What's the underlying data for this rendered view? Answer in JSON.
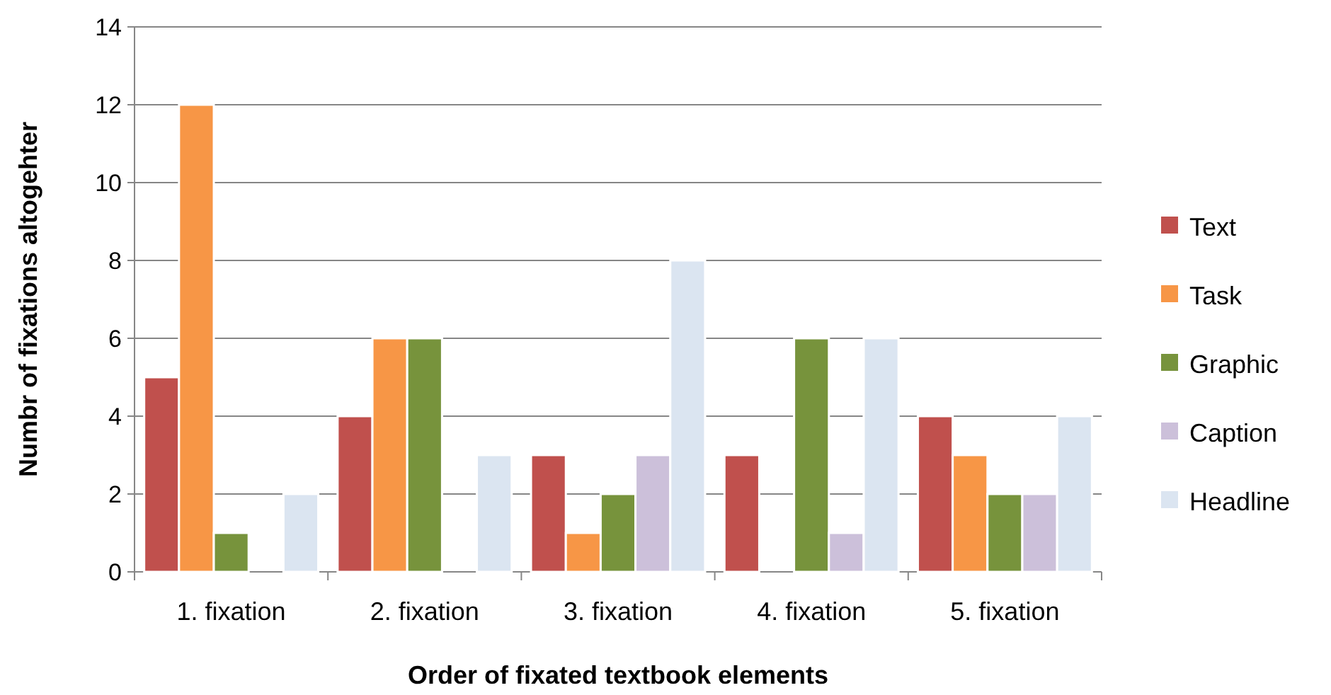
{
  "chart_data": {
    "type": "bar",
    "xlabel": "Order of fixated textbook elements",
    "ylabel": "Numbr of fixations altogehter",
    "categories": [
      "1. fixation",
      "2. fixation",
      "3. fixation",
      "4. fixation",
      "5. fixation"
    ],
    "series": [
      {
        "name": "Text",
        "color": "#c0504d",
        "values": [
          5,
          4,
          3,
          3,
          4
        ]
      },
      {
        "name": "Task",
        "color": "#f79646",
        "values": [
          12,
          6,
          1,
          0,
          3
        ]
      },
      {
        "name": "Graphic",
        "color": "#77933c",
        "values": [
          1,
          6,
          2,
          6,
          2
        ]
      },
      {
        "name": "Caption",
        "color": "#ccc0da",
        "values": [
          0,
          0,
          3,
          1,
          2
        ]
      },
      {
        "name": "Headline",
        "color": "#dbe5f1",
        "values": [
          2,
          3,
          8,
          6,
          4
        ]
      }
    ],
    "ylim": [
      0,
      14
    ],
    "yticks": [
      0,
      2,
      4,
      6,
      8,
      10,
      12,
      14
    ],
    "grid": "y",
    "legend": "right"
  }
}
